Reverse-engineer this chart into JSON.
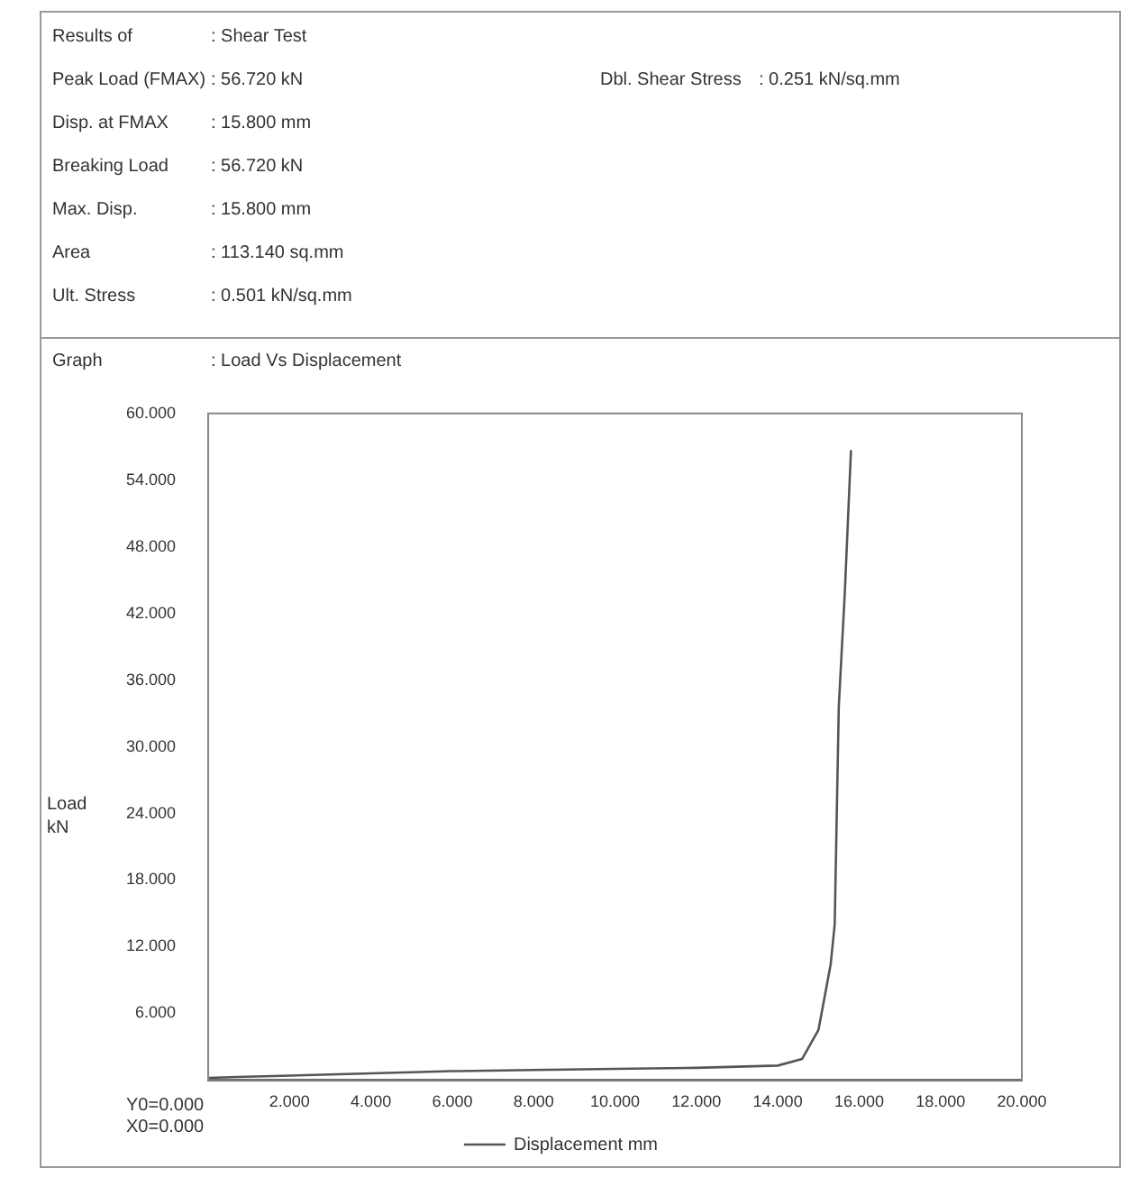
{
  "chart_data": {
    "type": "line",
    "title": ": Load Vs Displacement",
    "ylabel": "Load kN",
    "annotations": [
      "Results of",
      ": Shear Test",
      "Peak Load (FMAX)",
      ": 56.720 kN",
      "Disp. at FMAX",
      ": 15.800 mm",
      "Breaking Load",
      ": 56.720 kN",
      "Max. Disp.",
      ": 15.800 mm",
      "Area",
      ": 113.140 sq.mm",
      "Ult. Stress",
      ": 0.501 kN/sq.mm",
      "Dbl. Shear Stress",
      ": 0.251 kN/sq.mm",
      "Graph",
      "Y0=0.000",
      "X0=0.000"
    ],
    "series": [
      {
        "name": "Displacement mm",
        "color": "#555555",
        "x": [
          0,
          2,
          4,
          6,
          8,
          10,
          12,
          14,
          14.6,
          15.0,
          15.3,
          15.4,
          15.5,
          15.65,
          15.8
        ],
        "values": [
          0.2,
          0.4,
          0.6,
          0.8,
          0.9,
          1.0,
          1.1,
          1.3,
          1.9,
          4.5,
          10.4,
          14,
          33.6,
          44,
          56.7
        ]
      }
    ],
    "xlim": [
      0,
      20
    ],
    "ylim": [
      0,
      60
    ],
    "xticks": [
      {
        "value": 2,
        "label": "2.000"
      },
      {
        "value": 4,
        "label": "4.000"
      },
      {
        "value": 6,
        "label": "6.000"
      },
      {
        "value": 8,
        "label": "8.000"
      },
      {
        "value": 10,
        "label": "10.000"
      },
      {
        "value": 12,
        "label": "12.000"
      },
      {
        "value": 14,
        "label": "14.000"
      },
      {
        "value": 16,
        "label": "16.000"
      },
      {
        "value": 18,
        "label": "18.000"
      },
      {
        "value": 20,
        "label": "20.000"
      }
    ],
    "yticks": [
      {
        "value": 6,
        "label": "6.000"
      },
      {
        "value": 12,
        "label": "12.000"
      },
      {
        "value": 18,
        "label": "18.000"
      },
      {
        "value": 24,
        "label": "24.000"
      },
      {
        "value": 30,
        "label": "30.000"
      },
      {
        "value": 36,
        "label": "36.000"
      },
      {
        "value": 42,
        "label": "42.000"
      },
      {
        "value": 48,
        "label": "48.000"
      },
      {
        "value": 54,
        "label": "54.000"
      },
      {
        "value": 60,
        "label": "60.000"
      }
    ],
    "grid": false,
    "legend": "bottom",
    "marker": "none",
    "line_style": "solid"
  }
}
